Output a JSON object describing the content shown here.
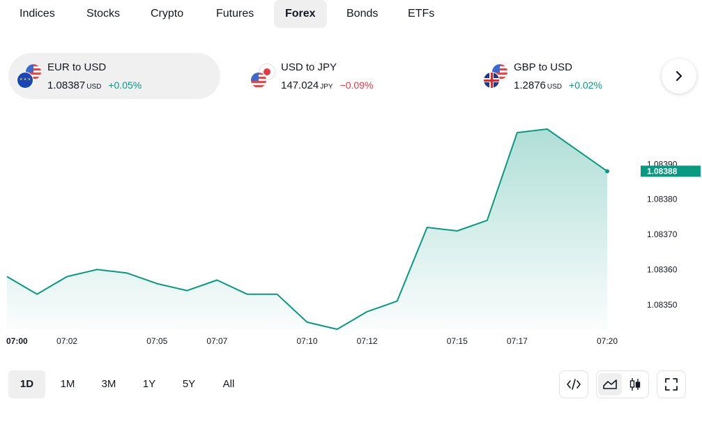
{
  "tabs": [
    {
      "label": "Indices",
      "active": false
    },
    {
      "label": "Stocks",
      "active": false
    },
    {
      "label": "Crypto",
      "active": false
    },
    {
      "label": "Futures",
      "active": false
    },
    {
      "label": "Forex",
      "active": true
    },
    {
      "label": "Bonds",
      "active": false
    },
    {
      "label": "ETFs",
      "active": false
    }
  ],
  "symbols": [
    {
      "name": "EUR to USD",
      "price": "1.08387",
      "unit": "USD",
      "change": "+0.05%",
      "direction": "up",
      "flags": [
        "us-flag-icon",
        "eu-flag-icon"
      ],
      "active": true
    },
    {
      "name": "USD to JPY",
      "price": "147.024",
      "unit": "JPY",
      "change": "−0.09%",
      "direction": "down",
      "flags": [
        "jp-flag-icon",
        "us-flag-icon"
      ],
      "active": false
    },
    {
      "name": "GBP to USD",
      "price": "1.2876",
      "unit": "USD",
      "change": "+0.02%",
      "direction": "up",
      "flags": [
        "us-flag-icon",
        "gb-flag-icon"
      ],
      "active": false
    }
  ],
  "next_icon": "chevron-right-icon",
  "chart_data": {
    "type": "area",
    "title": "",
    "xlabel": "",
    "ylabel": "",
    "x_tick_labels": [
      "07:00",
      "07:02",
      "07:05",
      "07:07",
      "07:10",
      "07:12",
      "07:15",
      "07:17",
      "07:20"
    ],
    "x_tick_minutes": [
      0,
      2,
      5,
      7,
      10,
      12,
      15,
      17,
      20
    ],
    "y_tick_labels": [
      "1.08390",
      "1.08380",
      "1.08370",
      "1.08360",
      "1.08350"
    ],
    "y_ticks": [
      1.0839,
      1.0838,
      1.0837,
      1.0836,
      1.0835
    ],
    "ylim": [
      1.08343,
      1.08401
    ],
    "xlim": [
      0,
      20
    ],
    "series": [
      {
        "x": [
          0,
          1,
          2,
          3,
          4,
          5,
          6,
          7,
          8,
          9,
          10,
          11,
          12,
          13,
          14,
          15,
          16,
          17,
          18,
          19,
          20
        ],
        "y": [
          1.08358,
          1.08353,
          1.08358,
          1.0836,
          1.08359,
          1.08356,
          1.08354,
          1.08357,
          1.08353,
          1.08353,
          1.08345,
          1.08343,
          1.08348,
          1.08351,
          1.08372,
          1.08371,
          1.08374,
          1.08399,
          1.084,
          1.08394,
          1.08388
        ]
      }
    ],
    "last_value_label": "1.08388",
    "line_color": "#089981",
    "fill_color": "#089981",
    "grid": false
  },
  "ranges": [
    {
      "label": "1D",
      "active": true
    },
    {
      "label": "1M",
      "active": false
    },
    {
      "label": "3M",
      "active": false
    },
    {
      "label": "1Y",
      "active": false
    },
    {
      "label": "5Y",
      "active": false
    },
    {
      "label": "All",
      "active": false
    }
  ],
  "tools": {
    "embed_icon": "code-icon",
    "chart_types": [
      {
        "icon": "area-chart-icon",
        "active": true
      },
      {
        "icon": "candlestick-chart-icon",
        "active": false
      }
    ],
    "fullscreen_icon": "fullscreen-icon"
  }
}
